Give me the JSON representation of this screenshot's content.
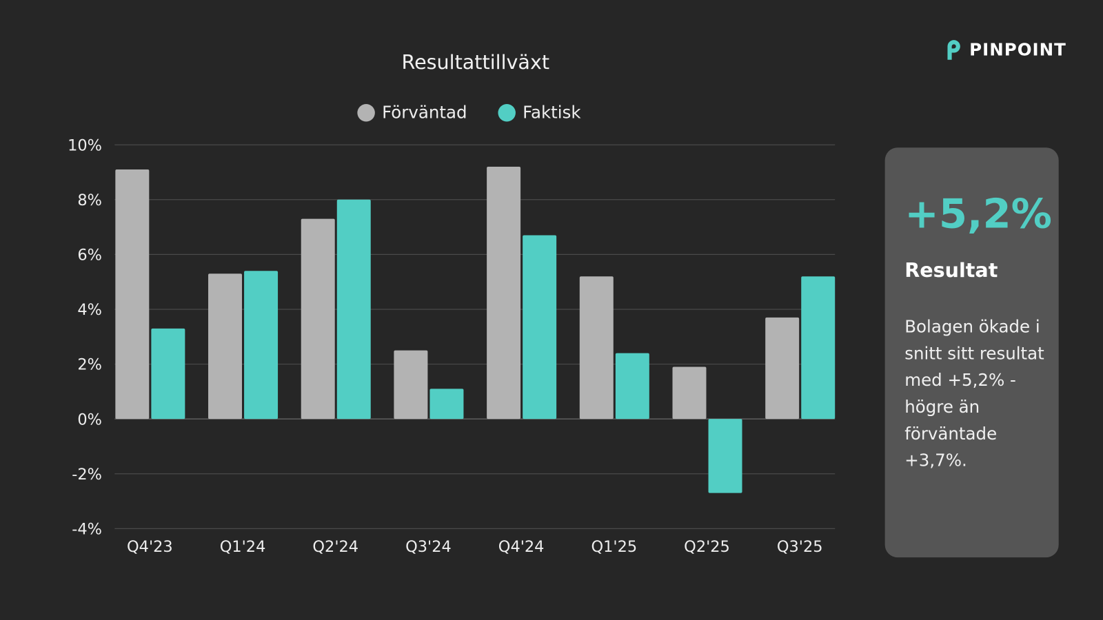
{
  "brand": {
    "name": "PINPOINT",
    "logo_icon": "pinpoint-p-logo",
    "accent": "#52cec4"
  },
  "chart_data": {
    "type": "bar",
    "title": "Resultattillväxt",
    "categories": [
      "Q4'23",
      "Q1'24",
      "Q2'24",
      "Q3'24",
      "Q4'24",
      "Q1'25",
      "Q2'25",
      "Q3'25"
    ],
    "series": [
      {
        "name": "Förväntad",
        "color": "#b3b3b3",
        "values": [
          9.1,
          5.3,
          7.3,
          2.5,
          9.2,
          5.2,
          1.9,
          3.7
        ]
      },
      {
        "name": "Faktisk",
        "color": "#52cec4",
        "values": [
          3.3,
          5.4,
          8.0,
          1.1,
          6.7,
          2.4,
          -2.7,
          5.2
        ]
      }
    ],
    "ylim": [
      -4,
      10
    ],
    "yticks": [
      10,
      8,
      6,
      4,
      2,
      0,
      -2,
      -4
    ],
    "ytick_labels": [
      "10%",
      "8%",
      "6%",
      "4%",
      "2%",
      "0%",
      "-2%",
      "-4%"
    ],
    "grid": true,
    "legend": "top"
  },
  "card": {
    "value": "+5,2%",
    "label": "Resultat",
    "description": "Bolagen ökade i snitt sitt resultat med +5,2% - högre än förväntade +3,7%."
  }
}
